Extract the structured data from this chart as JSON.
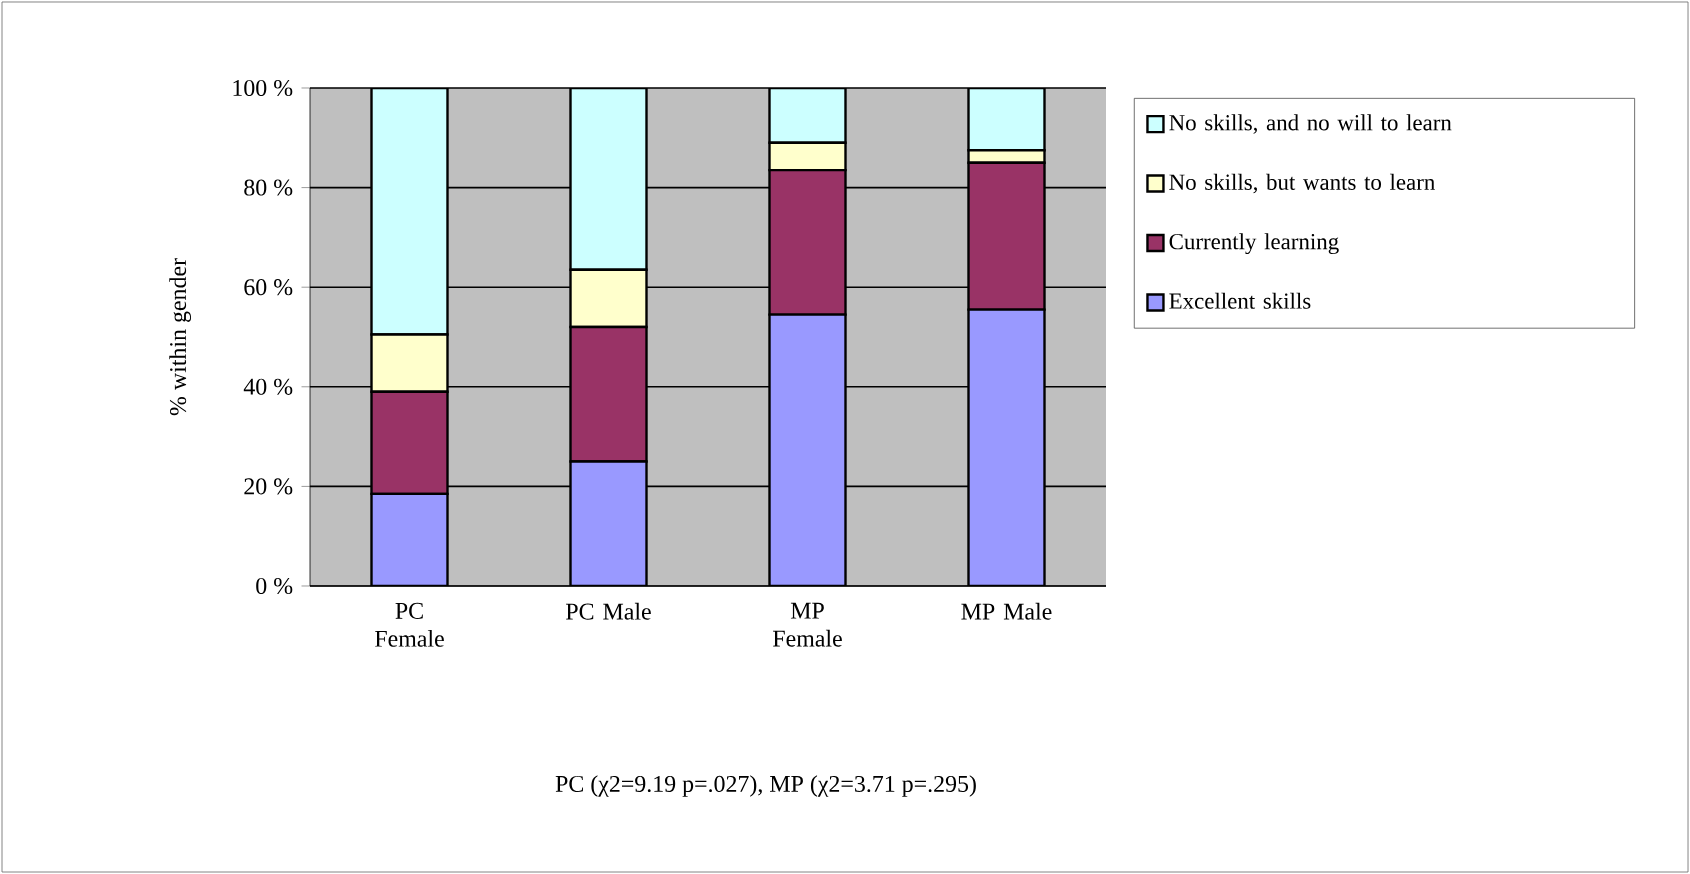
{
  "chart_data": {
    "type": "bar",
    "stacked": true,
    "ylabel": "% within gender",
    "categories": [
      "PC Female",
      "PC Male",
      "MP Female",
      "MP Male"
    ],
    "series": [
      {
        "name": "Excellent skills",
        "color": "#9999ff",
        "values": [
          18.5,
          25,
          54.5,
          55.5
        ]
      },
      {
        "name": "Currently learning",
        "color": "#993366",
        "values": [
          20.5,
          27,
          29,
          29.5
        ]
      },
      {
        "name": "No skills, but wants to learn",
        "color": "#ffffcc",
        "values": [
          11.5,
          11.5,
          5.5,
          2.5
        ]
      },
      {
        "name": "No skills, and no will to learn",
        "color": "#ccffff",
        "values": [
          49.5,
          36.5,
          11,
          12.5
        ]
      }
    ],
    "ylim": [
      0,
      100
    ],
    "yticks": [
      {
        "value": 0,
        "label": "0 %"
      },
      {
        "value": 20,
        "label": "20 %"
      },
      {
        "value": 40,
        "label": "40 %"
      },
      {
        "value": 60,
        "label": "60 %"
      },
      {
        "value": 80,
        "label": "80 %"
      },
      {
        "value": 100,
        "label": "100 %"
      }
    ],
    "grid": "y",
    "legend": "right",
    "annotations": [
      "PC (χ2=9.19 p=.027), MP (χ2=3.71 p=.295)"
    ]
  }
}
